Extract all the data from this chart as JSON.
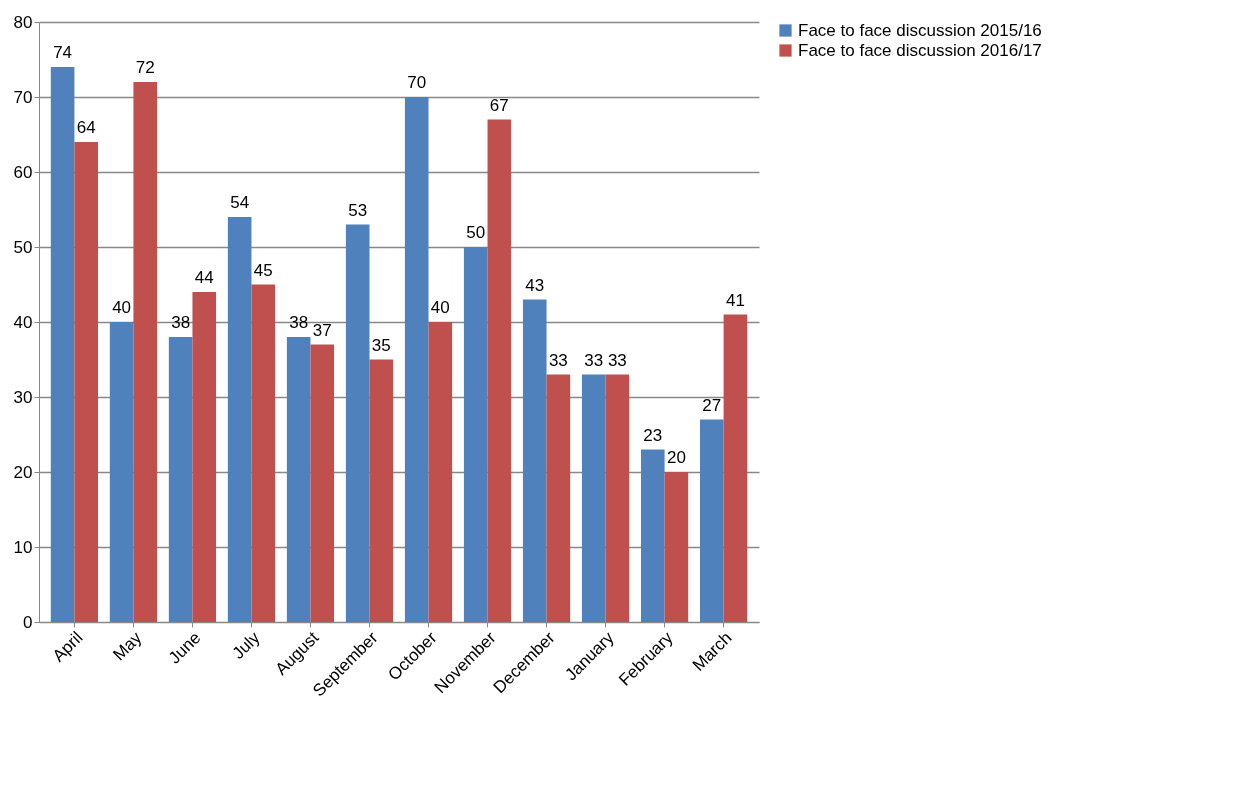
{
  "chart_data": {
    "type": "bar",
    "categories": [
      "April",
      "May",
      "June",
      "July",
      "August",
      "September",
      "October",
      "November",
      "December",
      "January",
      "February",
      "March"
    ],
    "series": [
      {
        "name": "Face to face discussion 2015/16",
        "color": "#4f81bd",
        "values": [
          74,
          40,
          38,
          54,
          38,
          53,
          70,
          50,
          43,
          33,
          23,
          27
        ]
      },
      {
        "name": "Face to face discussion 2016/17",
        "color": "#c0504d",
        "values": [
          64,
          72,
          44,
          45,
          37,
          35,
          40,
          67,
          33,
          33,
          20,
          41
        ]
      }
    ],
    "ylim": [
      0,
      80
    ],
    "yticks": [
      0,
      10,
      20,
      30,
      40,
      50,
      60,
      70,
      80
    ],
    "grid": "y",
    "legend": "right",
    "data_labels": true
  }
}
